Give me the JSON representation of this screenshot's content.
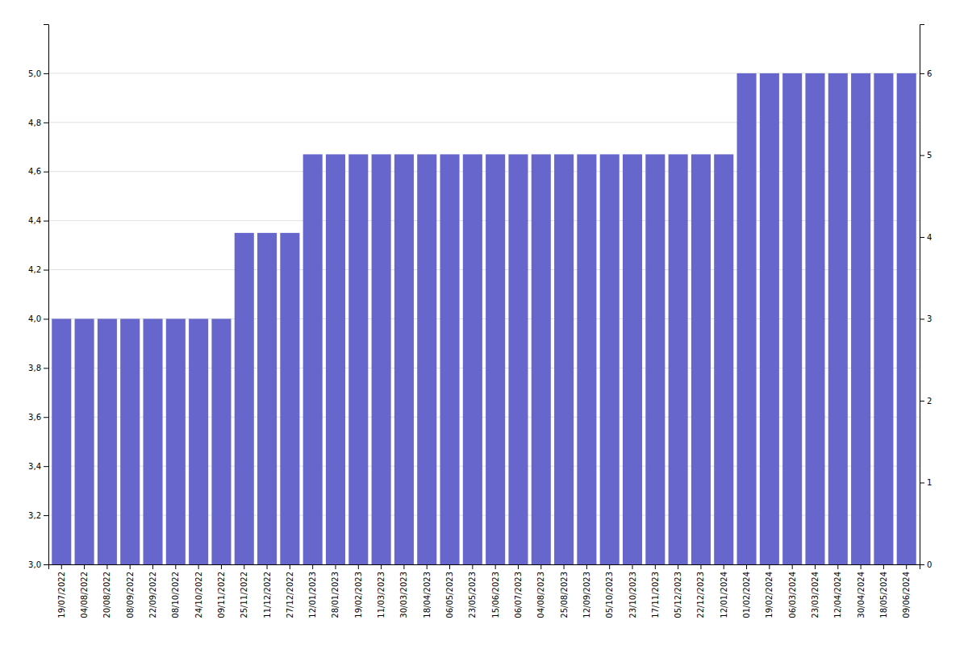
{
  "chart_data": {
    "type": "bar",
    "categories": [
      "19/07/2022",
      "04/08/2022",
      "20/08/2022",
      "08/09/2022",
      "22/09/2022",
      "08/10/2022",
      "24/10/2022",
      "09/11/2022",
      "25/11/2022",
      "11/12/2022",
      "27/12/2022",
      "12/01/2023",
      "28/01/2023",
      "19/02/2023",
      "11/03/2023",
      "30/03/2023",
      "18/04/2023",
      "06/05/2023",
      "23/05/2023",
      "15/06/2023",
      "06/07/2023",
      "04/08/2023",
      "25/08/2023",
      "12/09/2023",
      "05/10/2023",
      "23/10/2023",
      "17/11/2023",
      "05/12/2023",
      "22/12/2023",
      "12/01/2024",
      "01/02/2024",
      "19/02/2024",
      "06/03/2024",
      "23/03/2024",
      "12/04/2024",
      "30/04/2024",
      "18/05/2024",
      "09/06/2024"
    ],
    "values": [
      4.0,
      4.0,
      4.0,
      4.0,
      4.0,
      4.0,
      4.0,
      4.0,
      4.35,
      4.35,
      4.35,
      4.67,
      4.67,
      4.67,
      4.67,
      4.67,
      4.67,
      4.67,
      4.67,
      4.67,
      4.67,
      4.67,
      4.67,
      4.67,
      4.67,
      4.67,
      4.67,
      4.67,
      4.67,
      4.67,
      5.0,
      5.0,
      5.0,
      5.0,
      5.0,
      5.0,
      5.0,
      5.0
    ],
    "color": "#6666cc",
    "ylim": [
      3.0,
      5.2
    ],
    "yticks": [
      {
        "value": 3.0,
        "label": "3,0"
      },
      {
        "value": 3.2,
        "label": "3,2"
      },
      {
        "value": 3.4,
        "label": "3,4"
      },
      {
        "value": 3.6,
        "label": "3,6"
      },
      {
        "value": 3.8,
        "label": "3,8"
      },
      {
        "value": 4.0,
        "label": "4,0"
      },
      {
        "value": 4.2,
        "label": "4,2"
      },
      {
        "value": 4.4,
        "label": "4,4"
      },
      {
        "value": 4.6,
        "label": "4,6"
      },
      {
        "value": 4.8,
        "label": "4,8"
      },
      {
        "value": 5.0,
        "label": "5,0"
      }
    ],
    "y2lim": [
      0,
      6.6
    ],
    "y2ticks": [
      0,
      1,
      2,
      3,
      4,
      5,
      6
    ],
    "grid": true
  }
}
